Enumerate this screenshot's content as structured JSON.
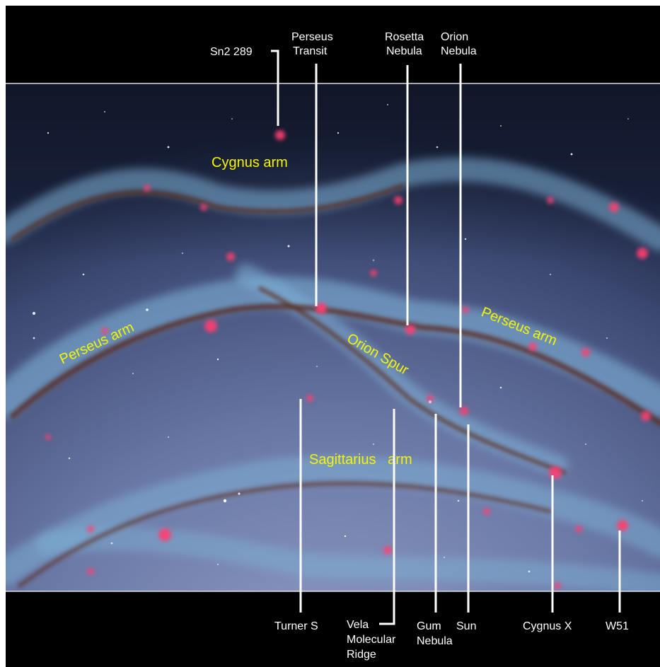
{
  "colors": {
    "background": "#000000",
    "arm_label": "#f5f500",
    "callout_text": "#ffffff",
    "pointer_line": "#ffffff",
    "star_forming_region": "#ff3f70",
    "star_glow": "#7fb3d8",
    "dust_lane": "#5a2a1e",
    "galaxy_disk": "#5c6a94"
  },
  "arms": {
    "cygnus": "Cygnus arm",
    "perseus_left": "Perseus arm",
    "perseus_right": "Perseus arm",
    "orion": "Orion Spur",
    "sagittarius": "Sagittarius   arm"
  },
  "callouts_top": {
    "sn2_289": "Sn2 289",
    "perseus_transit": [
      "Perseus",
      "Transit"
    ],
    "rosetta_nebula": [
      "Rosetta",
      "Nebula"
    ],
    "orion_nebula": [
      "Orion",
      "Nebula"
    ]
  },
  "callouts_bottom": {
    "turner_s": "Turner S",
    "vela_molecular_ridge": [
      "Vela",
      "Molecular",
      "Ridge"
    ],
    "gum_nebula": [
      "Gum",
      "Nebula"
    ],
    "sun": "Sun",
    "cygnus_x": "Cygnus X",
    "w51": "W51"
  }
}
